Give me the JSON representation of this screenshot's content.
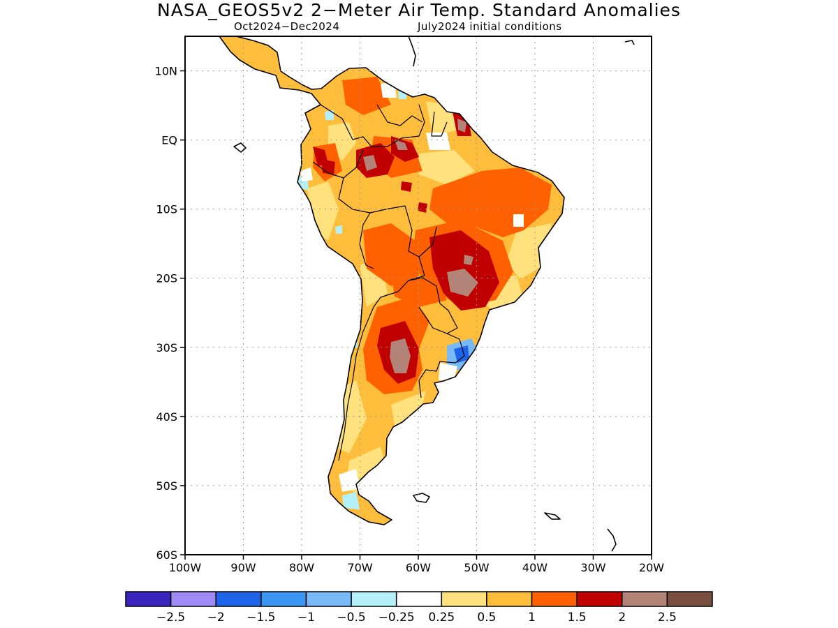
{
  "title": "NASA_GEOS5v2 2−Meter Air Temp. Standard Anomalies",
  "subtitle_left": "Oct2024−Dec2024",
  "subtitle_right": "July2024 initial conditions",
  "map": {
    "projection": "lat-lon",
    "lon_range": [
      -100,
      -20
    ],
    "lat_range": [
      -60,
      15
    ],
    "grid": "dotted",
    "region": "South America",
    "lat_ticks": [
      {
        "value": 10,
        "label": "10N"
      },
      {
        "value": 0,
        "label": "EQ"
      },
      {
        "value": -10,
        "label": "10S"
      },
      {
        "value": -20,
        "label": "20S"
      },
      {
        "value": -30,
        "label": "30S"
      },
      {
        "value": -40,
        "label": "40S"
      },
      {
        "value": -50,
        "label": "50S"
      },
      {
        "value": -60,
        "label": "60S"
      }
    ],
    "lon_ticks": [
      {
        "value": -100,
        "label": "100W"
      },
      {
        "value": -90,
        "label": "90W"
      },
      {
        "value": -80,
        "label": "80W"
      },
      {
        "value": -70,
        "label": "70W"
      },
      {
        "value": -60,
        "label": "60W"
      },
      {
        "value": -50,
        "label": "50W"
      },
      {
        "value": -40,
        "label": "40W"
      },
      {
        "value": -30,
        "label": "30W"
      },
      {
        "value": -20,
        "label": "20W"
      }
    ]
  },
  "legend": {
    "colors": [
      "#3b23bd",
      "#9e8bf5",
      "#1e64e8",
      "#3c96f3",
      "#78b9f8",
      "#b4f0fa",
      "#ffffff",
      "#ffe17d",
      "#ffbd3c",
      "#ff6000",
      "#c00000",
      "#b38377",
      "#7a4f3f"
    ],
    "labels": [
      "−2.5",
      "−2",
      "−1.5",
      "−1",
      "−0.5",
      "−0.25",
      "0.25",
      "0.5",
      "1",
      "1.5",
      "2",
      "2.5"
    ]
  },
  "colors": {
    "land_base": "#ffbd3c",
    "light": "#ffe17d",
    "warm": "#ff6000",
    "hot": "#c00000",
    "hotter": "#b38377",
    "cool": "#78b9f8",
    "cold": "#1e64e8",
    "coastline": "#000000"
  }
}
